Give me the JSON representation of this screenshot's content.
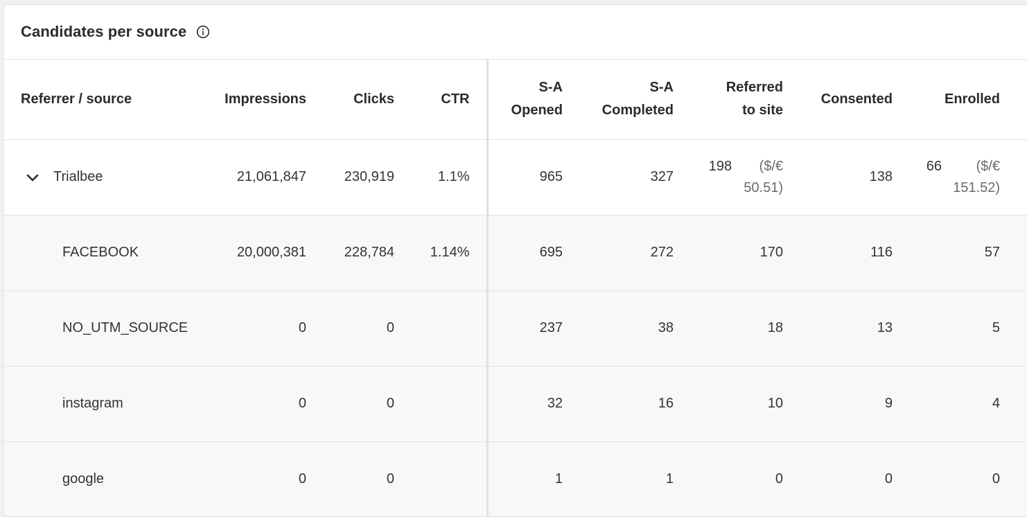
{
  "card": {
    "title": "Candidates per source",
    "info_icon": "info-icon"
  },
  "columns": {
    "source": "Referrer / source",
    "impressions": "Impressions",
    "clicks": "Clicks",
    "ctr": "CTR",
    "sa_opened_l1": "S-A",
    "sa_opened_l2": "Opened",
    "sa_completed_l1": "S-A",
    "sa_completed_l2": "Completed",
    "referred_l1": "Referred",
    "referred_l2": "to site",
    "consented": "Consented",
    "enrolled": "Enrolled"
  },
  "rows": [
    {
      "source": "Trialbee",
      "expand_icon": "chevron-down-icon",
      "impressions": "21,061,847",
      "clicks": "230,919",
      "ctr": "1.1%",
      "sa_opened": "965",
      "sa_completed": "327",
      "referred": "198",
      "referred_cost_l1": "($/€",
      "referred_cost_l2": "50.51)",
      "consented": "138",
      "enrolled": "66",
      "enrolled_cost_l1": "($/€",
      "enrolled_cost_l2": "151.52)"
    },
    {
      "source": "FACEBOOK",
      "impressions": "20,000,381",
      "clicks": "228,784",
      "ctr": "1.14%",
      "sa_opened": "695",
      "sa_completed": "272",
      "referred": "170",
      "consented": "116",
      "enrolled": "57"
    },
    {
      "source": "NO_UTM_SOURCE",
      "impressions": "0",
      "clicks": "0",
      "ctr": "",
      "sa_opened": "237",
      "sa_completed": "38",
      "referred": "18",
      "consented": "13",
      "enrolled": "5"
    },
    {
      "source": "instagram",
      "impressions": "0",
      "clicks": "0",
      "ctr": "",
      "sa_opened": "32",
      "sa_completed": "16",
      "referred": "10",
      "consented": "9",
      "enrolled": "4"
    },
    {
      "source": "google",
      "impressions": "0",
      "clicks": "0",
      "ctr": "",
      "sa_opened": "1",
      "sa_completed": "1",
      "referred": "0",
      "consented": "0",
      "enrolled": "0"
    }
  ]
}
